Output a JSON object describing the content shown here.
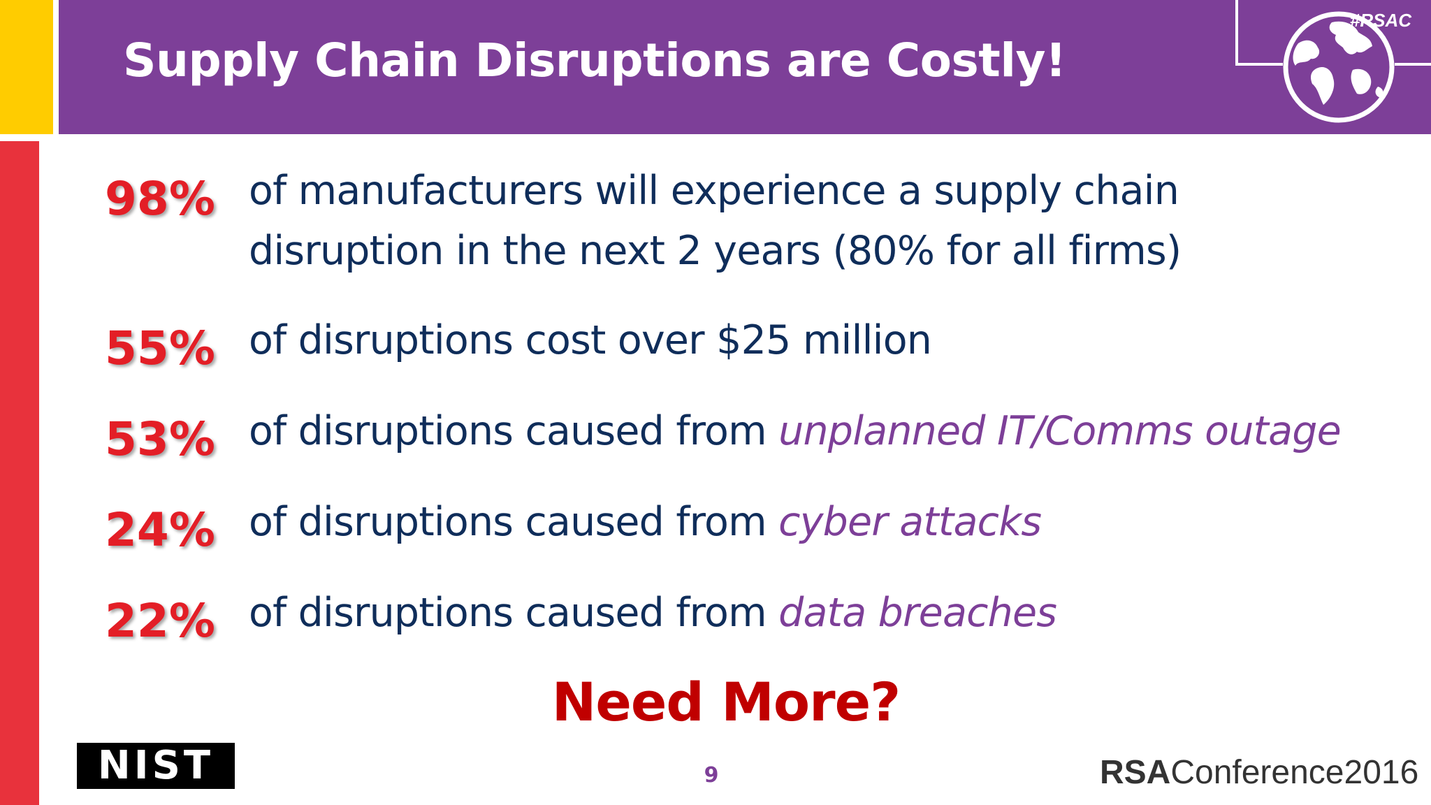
{
  "header": {
    "title": "Supply Chain Disruptions are Costly!",
    "hashtag": "#RSAC",
    "icon": "globe-icon"
  },
  "stats": [
    {
      "percent": "98%",
      "text_line1": "of manufacturers will experience a supply chain",
      "text_line2": "disruption in the next 2 years (80% for all firms)"
    },
    {
      "percent": "55%",
      "text": "of disruptions cost over $25 million"
    },
    {
      "percent": "53%",
      "text": "of disruptions caused from",
      "emphasis": "unplanned IT/Comms outage"
    },
    {
      "percent": "24%",
      "text": "of disruptions caused from",
      "emphasis": "cyber attacks"
    },
    {
      "percent": "22%",
      "text": "of disruptions caused from",
      "emphasis": "data breaches"
    }
  ],
  "callout": "Need More?",
  "footer": {
    "nist_logo": "NIST",
    "page_number": "9",
    "rsa_brand": "RSA",
    "rsa_rest": "Conference2016"
  },
  "colors": {
    "purple": "#7D3F98",
    "yellow": "#FFCC00",
    "red": "#E31E26",
    "navy": "#0F2D5A",
    "dark_red": "#C00000"
  }
}
